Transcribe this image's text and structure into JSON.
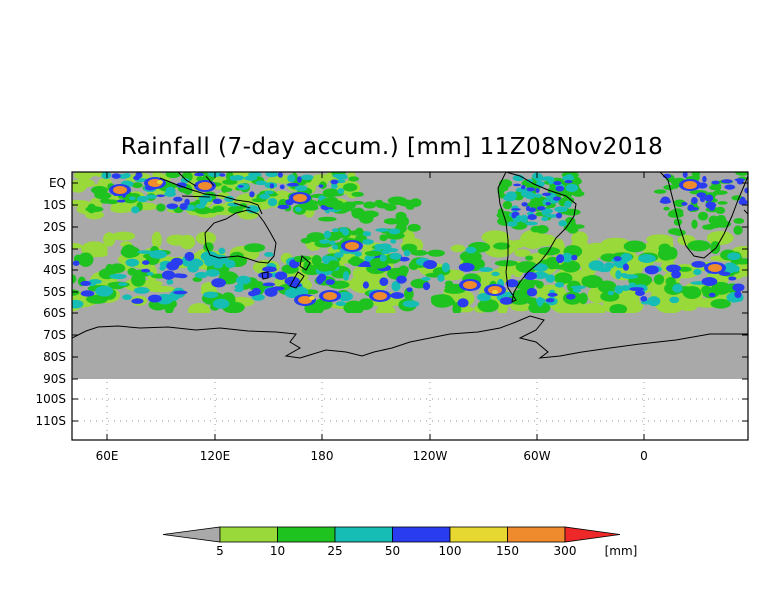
{
  "title": "Rainfall (7-day accum.) [mm] 11Z08Nov2018",
  "map": {
    "lat_labels": [
      "EQ",
      "10S",
      "20S",
      "30S",
      "40S",
      "50S",
      "60S",
      "70S",
      "80S",
      "90S",
      "100S",
      "110S"
    ],
    "lon_labels": [
      "60E",
      "120E",
      "180",
      "120W",
      "60W",
      "0"
    ],
    "no_data_color": "#a9a9a9",
    "colors": {
      "rain_5": "#9ad93a",
      "rain_10": "#1fc31f",
      "rain_25": "#16bdb5",
      "rain_50": "#2a3cf0",
      "rain_100": "#e6d830",
      "rain_150": "#ef8b2c",
      "rain_300": "#ee2828"
    }
  },
  "legend": {
    "ticks": [
      "5",
      "10",
      "25",
      "50",
      "100",
      "150",
      "300"
    ],
    "unit": "[mm]",
    "colors": [
      "#a9a9a9",
      "#9ad93a",
      "#1fc31f",
      "#16bdb5",
      "#2a3cf0",
      "#e6d830",
      "#ef8b2c",
      "#ee2828"
    ]
  }
}
